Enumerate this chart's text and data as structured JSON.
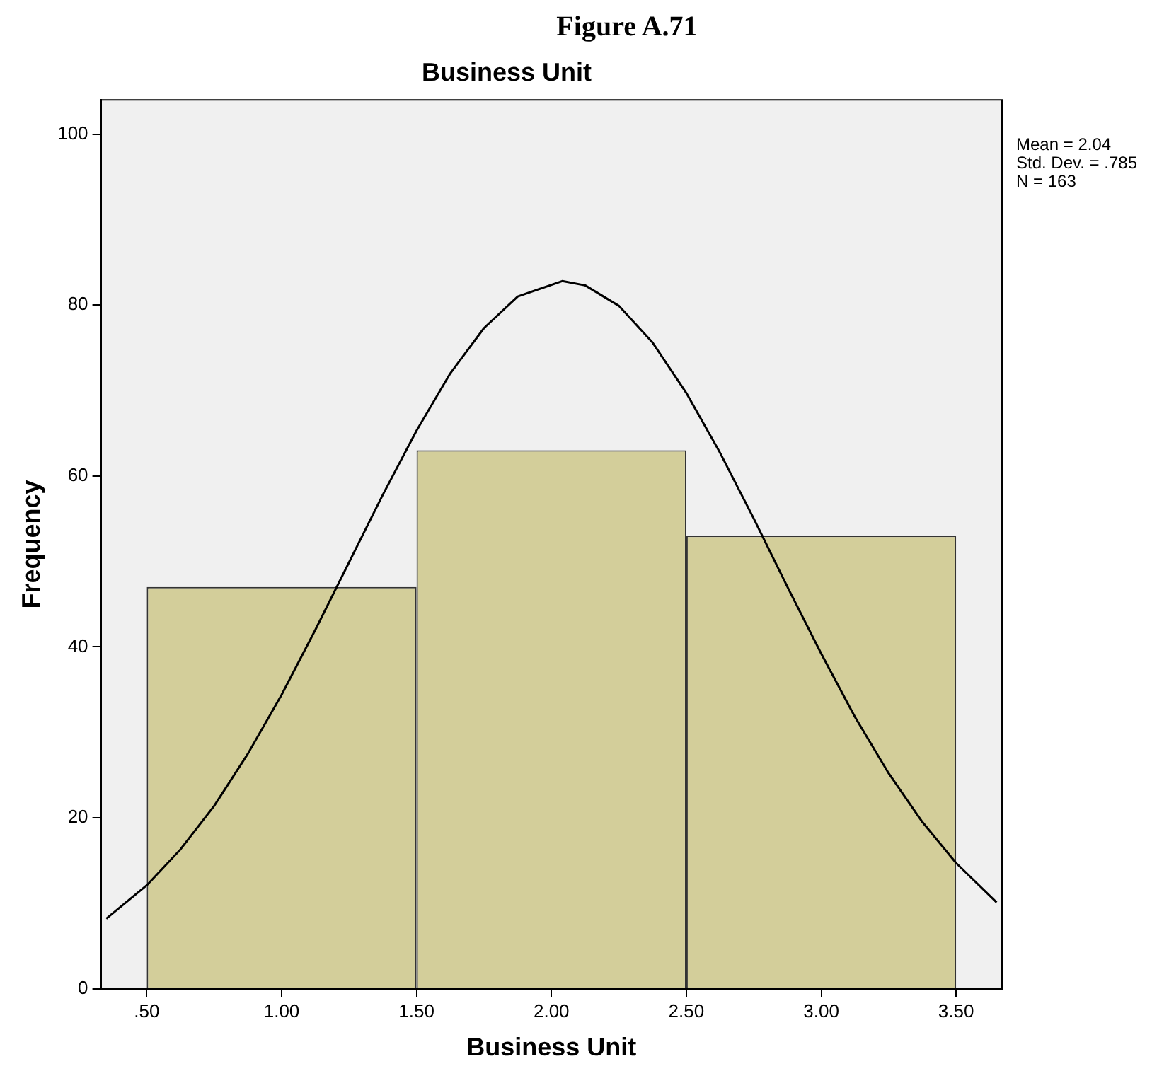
{
  "chart_data": {
    "type": "histogram",
    "title": "Figure A.71",
    "subtitle": "Business Unit",
    "xlabel": "Business Unit",
    "ylabel": "Frequency",
    "bins": [
      0.5,
      1.5,
      2.5,
      3.5
    ],
    "values": [
      47,
      63,
      53
    ],
    "color": "#d3ce9a",
    "series": [
      {
        "type": "line",
        "color": "#000000",
        "x": [
          0.35,
          0.5,
          0.625,
          0.75,
          0.875,
          1.0,
          1.125,
          1.25,
          1.375,
          1.5,
          1.625,
          1.75,
          1.875,
          2.04,
          2.125,
          2.25,
          2.375,
          2.5,
          2.625,
          2.75,
          2.875,
          3.0,
          3.125,
          3.25,
          3.375,
          3.5,
          3.65
        ],
        "values": [
          8.2,
          12.1,
          16.3,
          21.4,
          27.5,
          34.4,
          42.0,
          49.9,
          57.8,
          65.3,
          72.0,
          77.3,
          81.0,
          82.8,
          82.3,
          79.9,
          75.6,
          69.7,
          62.7,
          55.0,
          47.0,
          39.2,
          31.8,
          25.2,
          19.5,
          14.7,
          10.1
        ]
      }
    ],
    "xlim": [
      0.33,
      3.67
    ],
    "ylim": [
      0,
      104
    ],
    "xticks": [
      {
        "value": 0.5,
        "label": ".50"
      },
      {
        "value": 1,
        "label": "1.00"
      },
      {
        "value": 1.5,
        "label": "1.50"
      },
      {
        "value": 2,
        "label": "2.00"
      },
      {
        "value": 2.5,
        "label": "2.50"
      },
      {
        "value": 3,
        "label": "3.00"
      },
      {
        "value": 3.5,
        "label": "3.50"
      }
    ],
    "yticks": [
      0,
      20,
      40,
      60,
      80,
      100
    ],
    "grid": false,
    "legend": false,
    "annotations": [
      "Mean = 2.04",
      "Std. Dev. = .785",
      "N = 163"
    ]
  }
}
